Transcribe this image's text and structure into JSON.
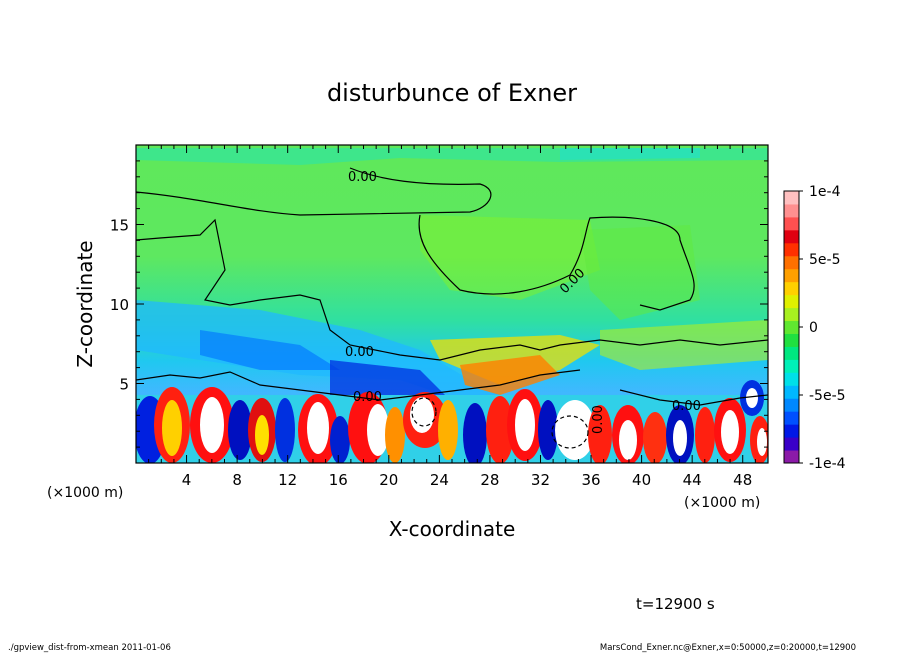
{
  "chart_data": {
    "type": "heatmap",
    "title": "disturbunce of Exner",
    "xlabel": "X-coordinate",
    "ylabel": "Z-coordinate",
    "x_unit_label": "(×1000 m)",
    "y_unit_label": "(×1000 m)",
    "xlim": [
      0,
      50
    ],
    "ylim": [
      0,
      20
    ],
    "x_ticks": [
      "4",
      "8",
      "12",
      "16",
      "20",
      "24",
      "28",
      "32",
      "36",
      "40",
      "44",
      "48"
    ],
    "y_ticks": [
      "5",
      "10",
      "15"
    ],
    "x_tick_values": [
      4,
      8,
      12,
      16,
      20,
      24,
      28,
      32,
      36,
      40,
      44,
      48
    ],
    "y_tick_values": [
      5,
      10,
      15
    ],
    "colorbar": {
      "min": -0.0001,
      "max": 0.0001,
      "labels": [
        "1e-4",
        "5e-5",
        "0",
        "-5e-5",
        "-1e-4"
      ],
      "label_values": [
        0.0001,
        5e-05,
        0,
        -5e-05,
        -0.0001
      ],
      "colors": [
        "#8b1aa8",
        "#3a00c8",
        "#0018e6",
        "#0050ff",
        "#0088ff",
        "#00b8ff",
        "#00e0e8",
        "#00f0b8",
        "#00e880",
        "#20e040",
        "#60e830",
        "#a8f020",
        "#e0f000",
        "#ffd000",
        "#ffa000",
        "#ff7000",
        "#ff3000",
        "#e00010",
        "#ff5050",
        "#ff9090",
        "#ffc0c0"
      ]
    },
    "contour_labels": [
      "0.00",
      "0.00",
      "0.00",
      "0.00",
      "0.00",
      "0.00"
    ],
    "annotation": "t=12900 s"
  },
  "footer": {
    "left": "./gpview_dist-from-xmean  2011-01-06",
    "right": "MarsCond_Exner.nc@Exner,x=0:50000,z=0:20000,t=12900"
  }
}
